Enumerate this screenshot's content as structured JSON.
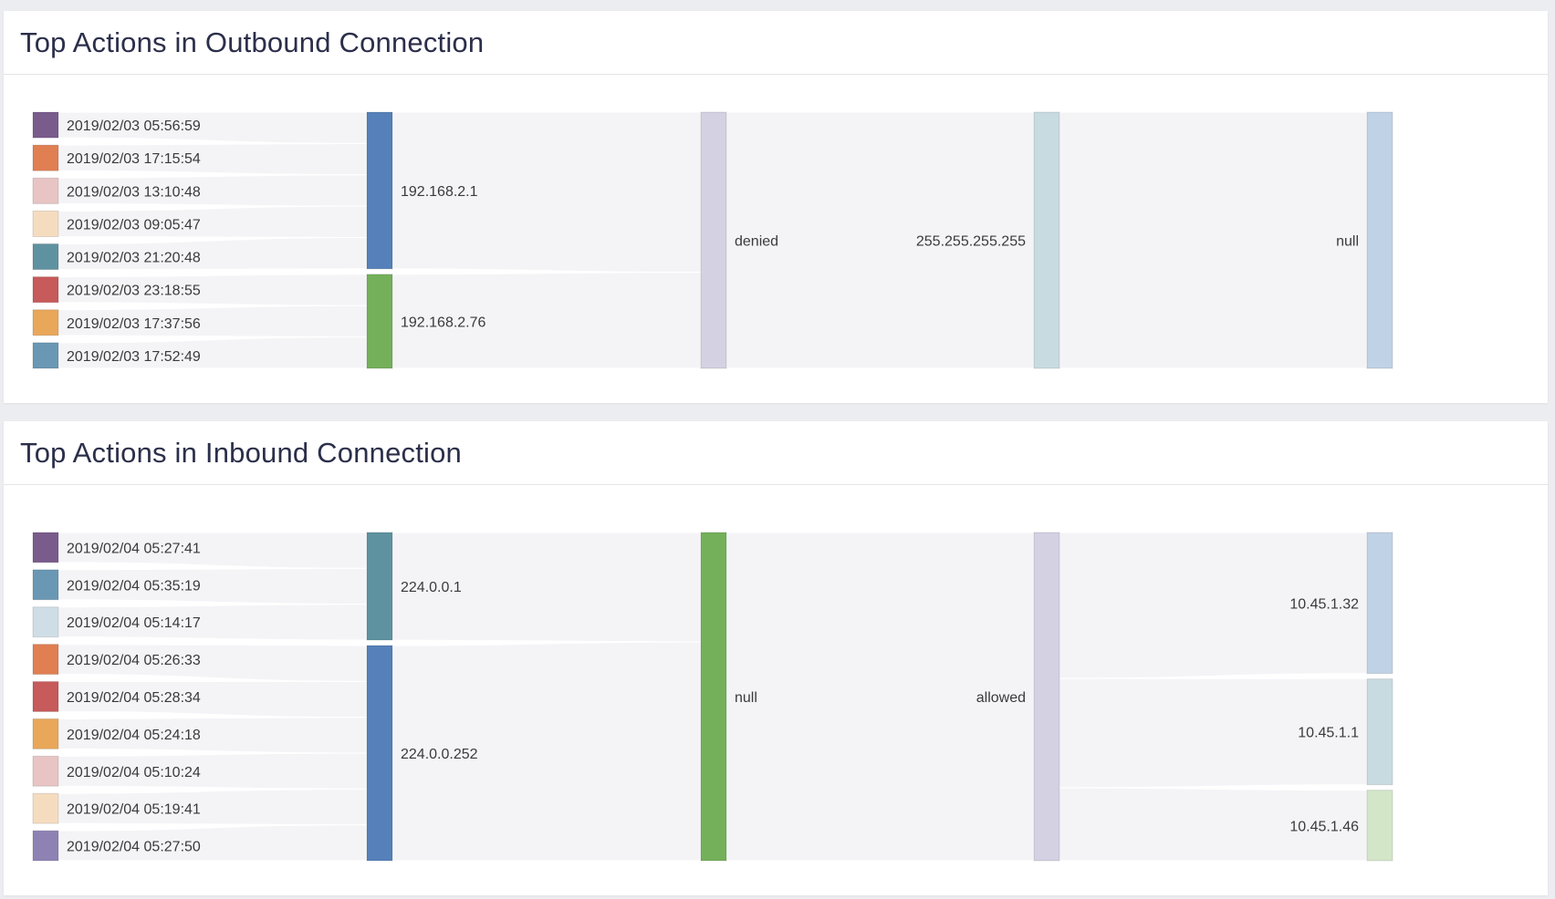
{
  "panels": {
    "outbound": {
      "title": "Top Actions in Outbound Connection"
    },
    "inbound": {
      "title": "Top Actions in Inbound Connection"
    }
  },
  "chart_data": [
    {
      "type": "sankey",
      "title": "Top Actions in Outbound Connection",
      "columns": [
        [
          {
            "id": "2019/02/03 05:56:59",
            "color": "#7a5c8c"
          },
          {
            "id": "2019/02/03 17:15:54",
            "color": "#e07f52"
          },
          {
            "id": "2019/02/03 13:10:48",
            "color": "#e8c4c4"
          },
          {
            "id": "2019/02/03 09:05:47",
            "color": "#f6dcbf"
          },
          {
            "id": "2019/02/03 21:20:48",
            "color": "#5f92a0"
          },
          {
            "id": "2019/02/03 23:18:55",
            "color": "#c75a5a"
          },
          {
            "id": "2019/02/03 17:37:56",
            "color": "#e9a75a"
          },
          {
            "id": "2019/02/03 17:52:49",
            "color": "#6a98b4"
          }
        ],
        [
          {
            "id": "192.168.2.1",
            "color": "#5580b9"
          },
          {
            "id": "192.168.2.76",
            "color": "#74b05a"
          }
        ],
        [
          {
            "id": "denied",
            "color": "#d4d1e3"
          }
        ],
        [
          {
            "id": "255.255.255.255",
            "color": "#c8dbe0"
          }
        ],
        [
          {
            "id": "null",
            "color": "#c0d2e6"
          }
        ]
      ],
      "links": [
        {
          "source": "2019/02/03 05:56:59",
          "target": "192.168.2.1",
          "value": 1
        },
        {
          "source": "2019/02/03 17:15:54",
          "target": "192.168.2.1",
          "value": 1
        },
        {
          "source": "2019/02/03 13:10:48",
          "target": "192.168.2.1",
          "value": 1
        },
        {
          "source": "2019/02/03 09:05:47",
          "target": "192.168.2.1",
          "value": 1
        },
        {
          "source": "2019/02/03 21:20:48",
          "target": "192.168.2.1",
          "value": 1
        },
        {
          "source": "2019/02/03 23:18:55",
          "target": "192.168.2.76",
          "value": 1
        },
        {
          "source": "2019/02/03 17:37:56",
          "target": "192.168.2.76",
          "value": 1
        },
        {
          "source": "2019/02/03 17:52:49",
          "target": "192.168.2.76",
          "value": 1
        },
        {
          "source": "192.168.2.1",
          "target": "denied",
          "value": 5
        },
        {
          "source": "192.168.2.76",
          "target": "denied",
          "value": 3
        },
        {
          "source": "denied",
          "target": "255.255.255.255",
          "value": 8
        },
        {
          "source": "255.255.255.255",
          "target": "null",
          "value": 8
        }
      ]
    },
    {
      "type": "sankey",
      "title": "Top Actions in Inbound Connection",
      "columns": [
        [
          {
            "id": "2019/02/04 05:27:41",
            "color": "#7a5c8c"
          },
          {
            "id": "2019/02/04 05:35:19",
            "color": "#6a98b4"
          },
          {
            "id": "2019/02/04 05:14:17",
            "color": "#cfdde6"
          },
          {
            "id": "2019/02/04 05:26:33",
            "color": "#e07f52"
          },
          {
            "id": "2019/02/04 05:28:34",
            "color": "#c75a5a"
          },
          {
            "id": "2019/02/04 05:24:18",
            "color": "#e9a75a"
          },
          {
            "id": "2019/02/04 05:10:24",
            "color": "#e8c4c4"
          },
          {
            "id": "2019/02/04 05:19:41",
            "color": "#f6dcbf"
          },
          {
            "id": "2019/02/04 05:27:50",
            "color": "#8e82b4"
          }
        ],
        [
          {
            "id": "224.0.0.1",
            "color": "#5f92a0"
          },
          {
            "id": "224.0.0.252",
            "color": "#5580b9"
          }
        ],
        [
          {
            "id": "null",
            "color": "#74b05a"
          }
        ],
        [
          {
            "id": "allowed",
            "color": "#d4d1e3"
          }
        ],
        [
          {
            "id": "10.45.1.32",
            "color": "#c0d2e6"
          },
          {
            "id": "10.45.1.1",
            "color": "#c8dbe0"
          },
          {
            "id": "10.45.1.46",
            "color": "#d3e6c8"
          }
        ]
      ],
      "links": [
        {
          "source": "2019/02/04 05:27:41",
          "target": "224.0.0.1",
          "value": 1
        },
        {
          "source": "2019/02/04 05:35:19",
          "target": "224.0.0.1",
          "value": 1
        },
        {
          "source": "2019/02/04 05:14:17",
          "target": "224.0.0.1",
          "value": 1
        },
        {
          "source": "2019/02/04 05:26:33",
          "target": "224.0.0.252",
          "value": 1
        },
        {
          "source": "2019/02/04 05:28:34",
          "target": "224.0.0.252",
          "value": 1
        },
        {
          "source": "2019/02/04 05:24:18",
          "target": "224.0.0.252",
          "value": 1
        },
        {
          "source": "2019/02/04 05:10:24",
          "target": "224.0.0.252",
          "value": 1
        },
        {
          "source": "2019/02/04 05:19:41",
          "target": "224.0.0.252",
          "value": 1
        },
        {
          "source": "2019/02/04 05:27:50",
          "target": "224.0.0.252",
          "value": 1
        },
        {
          "source": "224.0.0.1",
          "target": "null",
          "value": 3
        },
        {
          "source": "224.0.0.252",
          "target": "null",
          "value": 6
        },
        {
          "source": "null",
          "target": "allowed",
          "value": 9
        },
        {
          "source": "allowed",
          "target": "10.45.1.32",
          "value": 4
        },
        {
          "source": "allowed",
          "target": "10.45.1.1",
          "value": 3
        },
        {
          "source": "allowed",
          "target": "10.45.1.46",
          "value": 2
        }
      ]
    }
  ]
}
